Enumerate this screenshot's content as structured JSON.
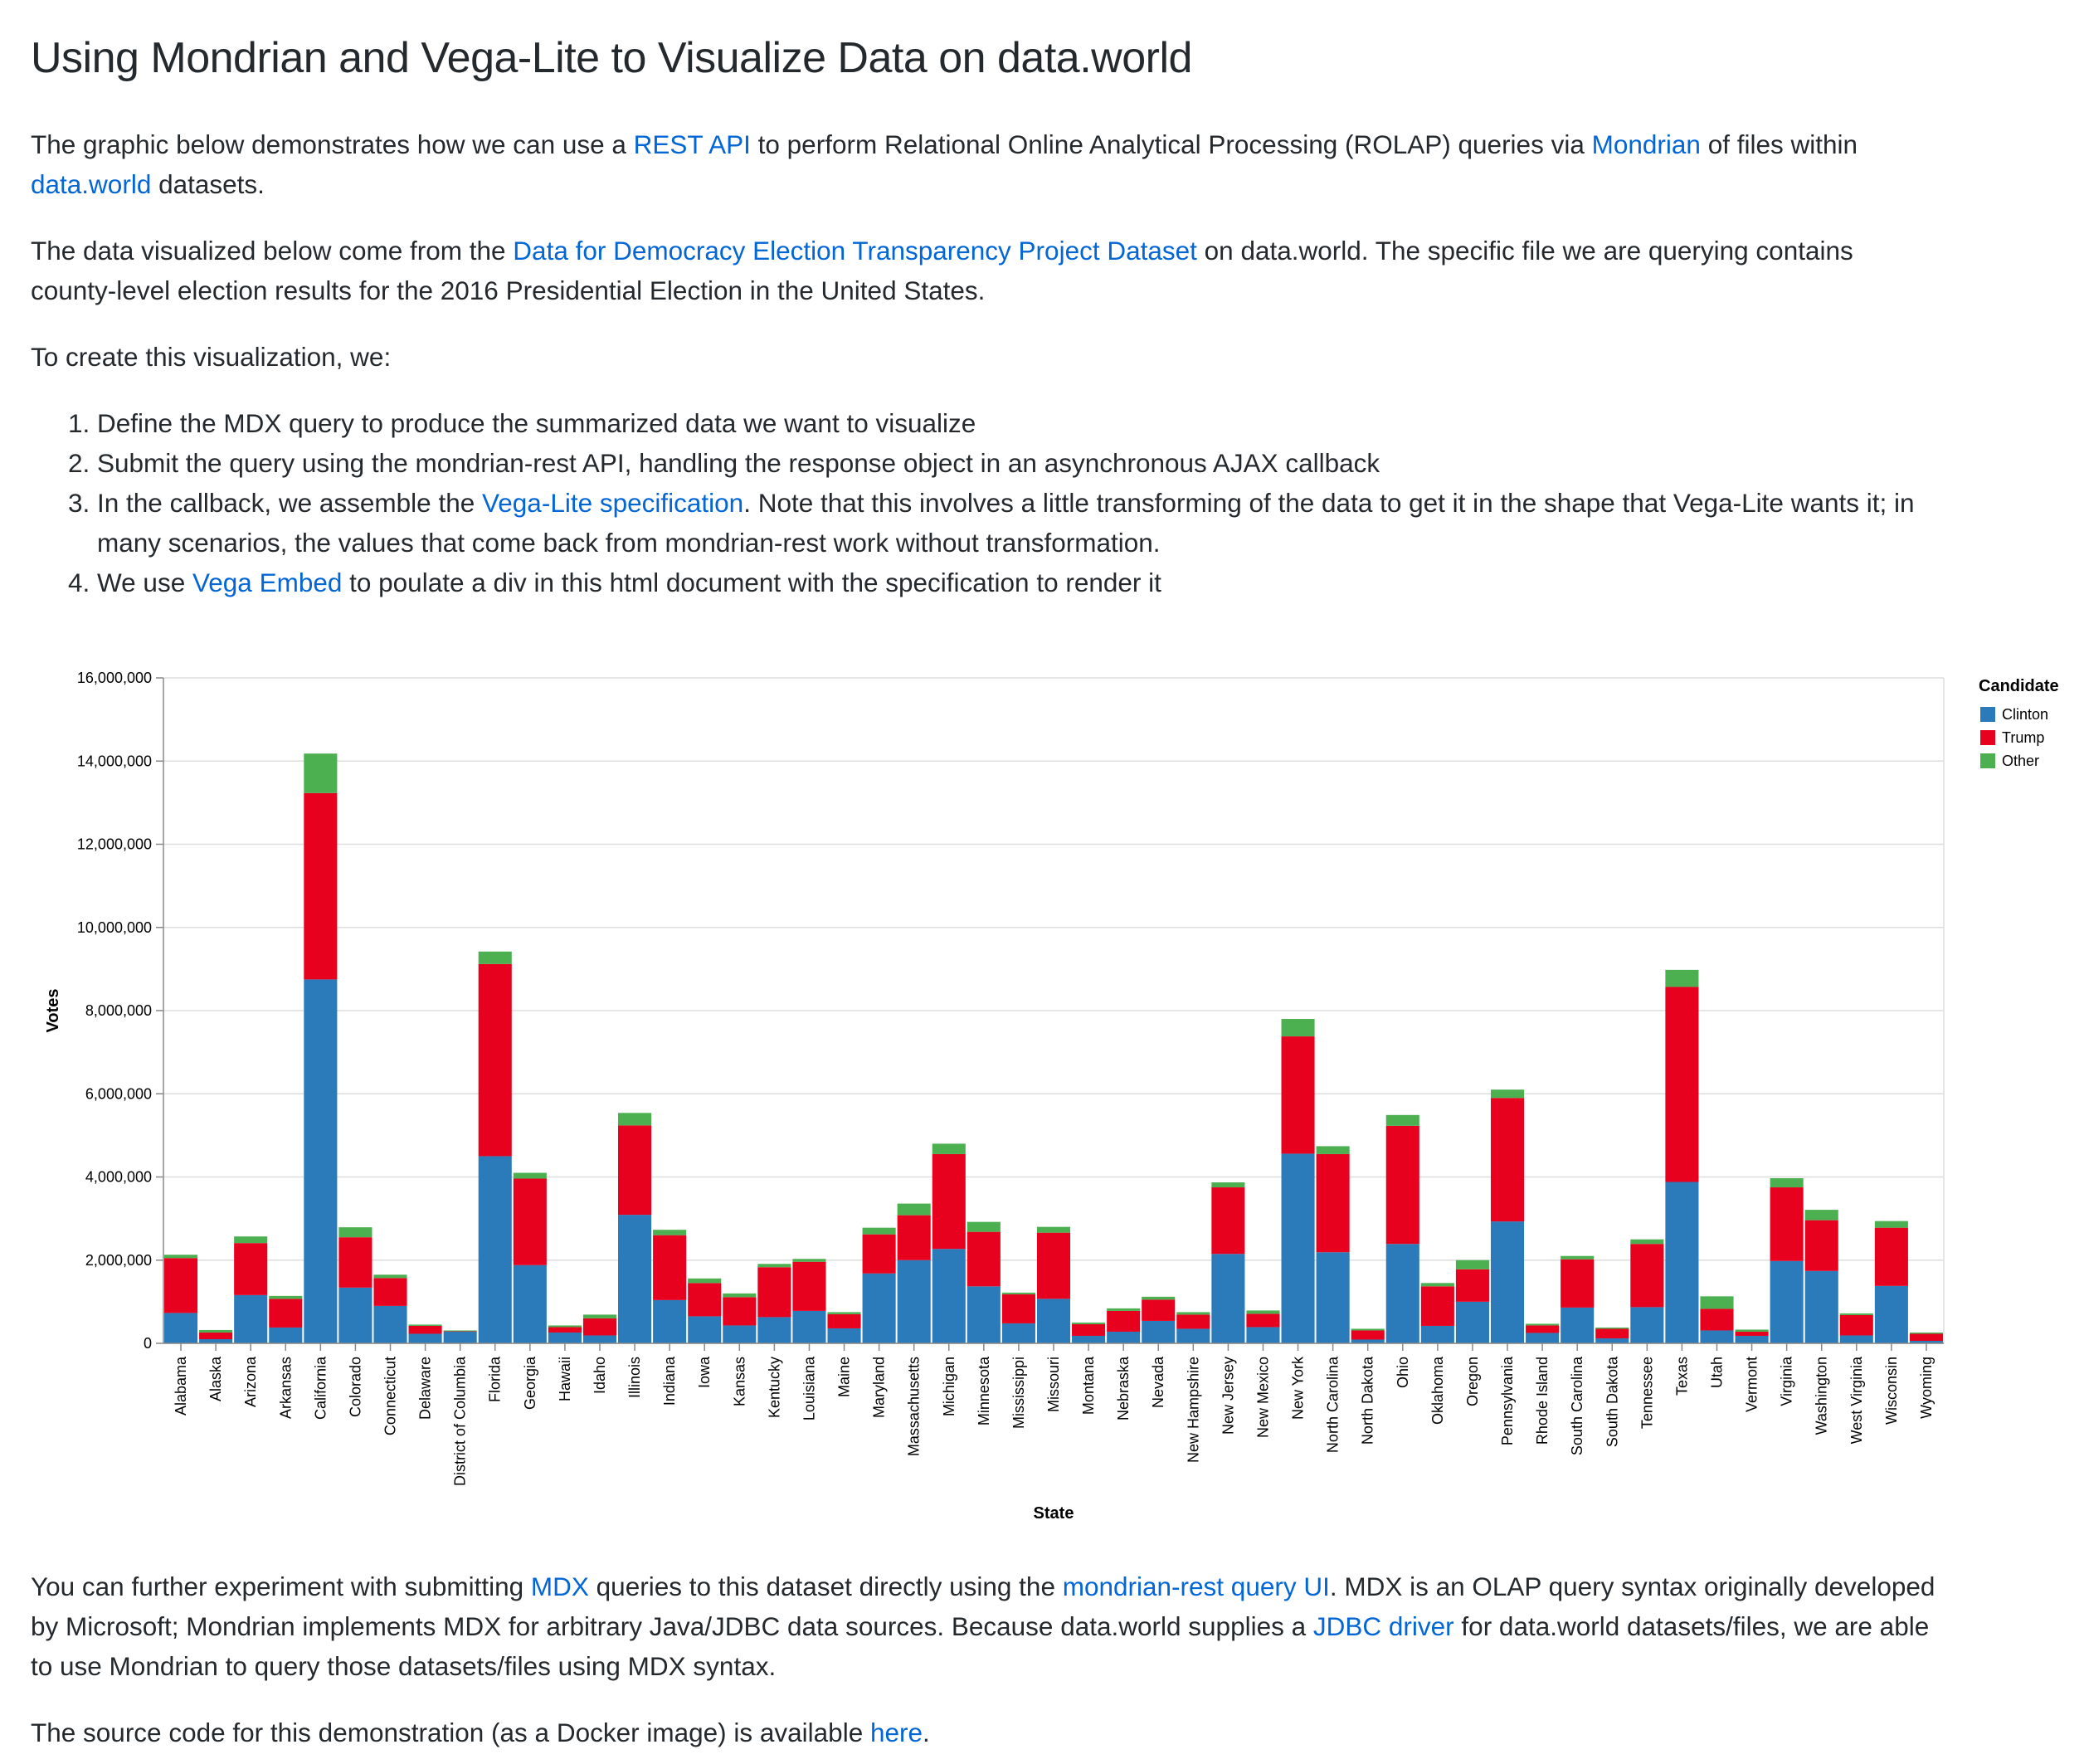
{
  "page_title": "Using Mondrian and Vega-Lite to Visualize Data on data.world",
  "intro": {
    "p1_a": "The graphic below demonstrates how we can use a ",
    "p1_link_rest": "REST API",
    "p1_b": " to perform Relational Online Analytical Processing (ROLAP) queries via ",
    "p1_link_mondrian": "Mondrian",
    "p1_c": " of files within ",
    "p1_link_dataworld": "data.world",
    "p1_d": " datasets.",
    "p2_a": "The data visualized below come from the ",
    "p2_link_dataset": "Data for Democracy Election Transparency Project Dataset",
    "p2_b": " on data.world. The specific file we are querying contains county-level election results for the 2016 Presidential Election in the United States.",
    "p3": "To create this visualization, we:"
  },
  "steps": {
    "s1": "Define the MDX query to produce the summarized data we want to visualize",
    "s2": "Submit the query using the mondrian-rest API, handling the response object in an asynchronous AJAX callback",
    "s3_a": "In the callback, we assemble the ",
    "s3_link": "Vega-Lite specification",
    "s3_b": ". Note that this involves a little transforming of the data to get it in the shape that Vega-Lite wants it; in many scenarios, the values that come back from mondrian-rest work without transformation.",
    "s4_a": "We use ",
    "s4_link": "Vega Embed",
    "s4_b": " to poulate a div in this html document with the specification to render it"
  },
  "outro": {
    "p4_a": "You can further experiment with submitting ",
    "p4_link_mdx": "MDX",
    "p4_b": " queries to this dataset directly using the ",
    "p4_link_ui": "mondrian-rest query UI",
    "p4_c": ". MDX is an OLAP query syntax originally developed by Microsoft; Mondrian implements MDX for arbitrary Java/JDBC data sources. Because data.world supplies a ",
    "p4_link_jdbc": "JDBC driver",
    "p4_d": " for data.world datasets/files, we are able to use Mondrian to query those datasets/files using MDX syntax.",
    "p5_a": "The source code for this demonstration (as a Docker image) is available ",
    "p5_link": "here",
    "p5_b": "."
  },
  "colors": {
    "link": "#0366d6",
    "clinton": "#2b7bba",
    "trump": "#e8001f",
    "other": "#4caf50"
  },
  "chart_data": {
    "type": "bar",
    "stacked": true,
    "xlabel": "State",
    "ylabel": "Votes",
    "ylim": [
      0,
      16000000
    ],
    "yticks": [
      "0",
      "2,000,000",
      "4,000,000",
      "6,000,000",
      "8,000,000",
      "10,000,000",
      "12,000,000",
      "14,000,000",
      "16,000,000"
    ],
    "grid": true,
    "legend": {
      "title": "Candidate",
      "position": "top-right",
      "entries": [
        "Clinton",
        "Trump",
        "Other"
      ]
    },
    "categories": [
      "Alabama",
      "Alaska",
      "Arizona",
      "Arkansas",
      "California",
      "Colorado",
      "Connecticut",
      "Delaware",
      "District of Columbia",
      "Florida",
      "Georgia",
      "Hawaii",
      "Idaho",
      "Illinois",
      "Indiana",
      "Iowa",
      "Kansas",
      "Kentucky",
      "Louisiana",
      "Maine",
      "Maryland",
      "Massachusetts",
      "Michigan",
      "Minnesota",
      "Mississippi",
      "Missouri",
      "Montana",
      "Nebraska",
      "Nevada",
      "New Hampshire",
      "New Jersey",
      "New Mexico",
      "New York",
      "North Carolina",
      "North Dakota",
      "Ohio",
      "Oklahoma",
      "Oregon",
      "Pennsylvania",
      "Rhode Island",
      "South Carolina",
      "South Dakota",
      "Tennessee",
      "Texas",
      "Utah",
      "Vermont",
      "Virginia",
      "Washington",
      "West Virginia",
      "Wisconsin",
      "Wyoming"
    ],
    "series": [
      {
        "name": "Clinton",
        "values": [
          730000,
          100000,
          1160000,
          380000,
          8750000,
          1340000,
          900000,
          230000,
          280000,
          4500000,
          1880000,
          260000,
          190000,
          3090000,
          1040000,
          650000,
          430000,
          630000,
          780000,
          360000,
          1680000,
          2000000,
          2270000,
          1370000,
          480000,
          1070000,
          180000,
          280000,
          540000,
          350000,
          2150000,
          390000,
          4560000,
          2190000,
          90000,
          2390000,
          420000,
          1000000,
          2930000,
          250000,
          860000,
          120000,
          870000,
          3880000,
          310000,
          180000,
          1980000,
          1740000,
          190000,
          1380000,
          60000
        ]
      },
      {
        "name": "Trump",
        "values": [
          1320000,
          160000,
          1250000,
          690000,
          4480000,
          1210000,
          670000,
          190000,
          10000,
          4620000,
          2080000,
          130000,
          410000,
          2150000,
          1560000,
          800000,
          680000,
          1200000,
          1180000,
          340000,
          940000,
          1080000,
          2280000,
          1310000,
          700000,
          1590000,
          280000,
          500000,
          510000,
          340000,
          1600000,
          320000,
          2820000,
          2360000,
          220000,
          2840000,
          950000,
          780000,
          2970000,
          180000,
          1160000,
          230000,
          1520000,
          4690000,
          520000,
          100000,
          1770000,
          1220000,
          490000,
          1400000,
          170000
        ]
      },
      {
        "name": "Other",
        "values": [
          80000,
          60000,
          160000,
          70000,
          950000,
          240000,
          80000,
          30000,
          20000,
          300000,
          140000,
          40000,
          90000,
          300000,
          130000,
          110000,
          90000,
          80000,
          70000,
          50000,
          160000,
          280000,
          250000,
          240000,
          40000,
          140000,
          40000,
          60000,
          70000,
          60000,
          120000,
          80000,
          420000,
          190000,
          40000,
          260000,
          80000,
          220000,
          200000,
          40000,
          80000,
          30000,
          110000,
          410000,
          300000,
          50000,
          220000,
          250000,
          40000,
          160000,
          30000
        ]
      }
    ]
  }
}
